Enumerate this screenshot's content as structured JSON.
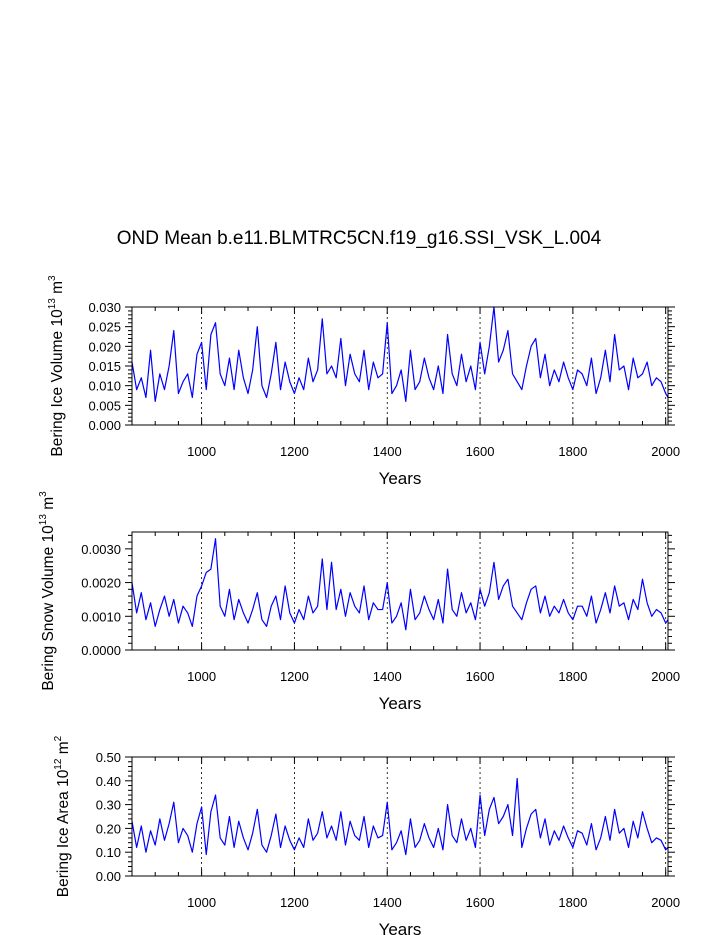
{
  "figure": {
    "title": "OND Mean b.e11.BLMTRC5CN.f19_g16.SSI_VSK_L.004"
  },
  "chart_data": [
    {
      "type": "line",
      "ylabel": {
        "main": "Bering Ice Volume 10",
        "sup": "13",
        "unit": " m",
        "unit_sup": "3"
      },
      "xlabel": "Years",
      "xlim": [
        850,
        2005
      ],
      "ylim": [
        0,
        0.03
      ],
      "xticks": [
        "1000",
        "1200",
        "1400",
        "1600",
        "1800",
        "2000"
      ],
      "yticks": [
        "0.000",
        "0.005",
        "0.010",
        "0.015",
        "0.020",
        "0.025",
        "0.030"
      ],
      "grid_x": true,
      "series": [
        {
          "color": "#0000ff",
          "x": [
            850,
            860,
            870,
            880,
            890,
            900,
            910,
            920,
            930,
            940,
            950,
            960,
            970,
            980,
            990,
            1000,
            1010,
            1020,
            1030,
            1040,
            1050,
            1060,
            1070,
            1080,
            1090,
            1100,
            1110,
            1120,
            1130,
            1140,
            1150,
            1160,
            1170,
            1180,
            1190,
            1200,
            1210,
            1220,
            1230,
            1240,
            1250,
            1260,
            1270,
            1280,
            1290,
            1300,
            1310,
            1320,
            1330,
            1340,
            1350,
            1360,
            1370,
            1380,
            1390,
            1400,
            1410,
            1420,
            1430,
            1440,
            1450,
            1460,
            1470,
            1480,
            1490,
            1500,
            1510,
            1520,
            1530,
            1540,
            1550,
            1560,
            1570,
            1580,
            1590,
            1600,
            1610,
            1620,
            1630,
            1640,
            1650,
            1660,
            1670,
            1680,
            1690,
            1700,
            1710,
            1720,
            1730,
            1740,
            1750,
            1760,
            1770,
            1780,
            1790,
            1800,
            1810,
            1820,
            1830,
            1840,
            1850,
            1860,
            1870,
            1880,
            1890,
            1900,
            1910,
            1920,
            1930,
            1940,
            1950,
            1960,
            1970,
            1980,
            1990,
            2000,
            2005
          ],
          "y": [
            0.016,
            0.009,
            0.012,
            0.007,
            0.019,
            0.006,
            0.013,
            0.009,
            0.015,
            0.024,
            0.008,
            0.011,
            0.013,
            0.007,
            0.018,
            0.021,
            0.009,
            0.023,
            0.026,
            0.013,
            0.01,
            0.017,
            0.009,
            0.019,
            0.012,
            0.008,
            0.014,
            0.025,
            0.01,
            0.007,
            0.013,
            0.021,
            0.009,
            0.016,
            0.011,
            0.008,
            0.012,
            0.009,
            0.017,
            0.011,
            0.014,
            0.027,
            0.013,
            0.015,
            0.012,
            0.022,
            0.01,
            0.018,
            0.013,
            0.011,
            0.019,
            0.009,
            0.016,
            0.012,
            0.013,
            0.026,
            0.008,
            0.01,
            0.014,
            0.006,
            0.019,
            0.009,
            0.011,
            0.017,
            0.012,
            0.009,
            0.015,
            0.008,
            0.023,
            0.013,
            0.01,
            0.018,
            0.011,
            0.015,
            0.009,
            0.021,
            0.013,
            0.02,
            0.03,
            0.016,
            0.019,
            0.024,
            0.013,
            0.011,
            0.009,
            0.015,
            0.02,
            0.022,
            0.012,
            0.018,
            0.01,
            0.014,
            0.011,
            0.016,
            0.012,
            0.009,
            0.014,
            0.013,
            0.01,
            0.017,
            0.008,
            0.012,
            0.019,
            0.011,
            0.023,
            0.014,
            0.015,
            0.009,
            0.017,
            0.012,
            0.013,
            0.016,
            0.01,
            0.012,
            0.011,
            0.008,
            0.007
          ]
        }
      ]
    },
    {
      "type": "line",
      "ylabel": {
        "main": "Bering Snow Volume 10",
        "sup": "13",
        "unit": " m",
        "unit_sup": "3"
      },
      "xlabel": "Years",
      "xlim": [
        850,
        2005
      ],
      "ylim": [
        0,
        0.0035
      ],
      "xticks": [
        "1000",
        "1200",
        "1400",
        "1600",
        "1800",
        "2000"
      ],
      "yticks": [
        "0.0000",
        "0.0010",
        "0.0020",
        "0.0030"
      ],
      "grid_x": true,
      "series": [
        {
          "color": "#0000ff",
          "x": [
            850,
            860,
            870,
            880,
            890,
            900,
            910,
            920,
            930,
            940,
            950,
            960,
            970,
            980,
            990,
            1000,
            1010,
            1020,
            1030,
            1040,
            1050,
            1060,
            1070,
            1080,
            1090,
            1100,
            1110,
            1120,
            1130,
            1140,
            1150,
            1160,
            1170,
            1180,
            1190,
            1200,
            1210,
            1220,
            1230,
            1240,
            1250,
            1260,
            1270,
            1280,
            1290,
            1300,
            1310,
            1320,
            1330,
            1340,
            1350,
            1360,
            1370,
            1380,
            1390,
            1400,
            1410,
            1420,
            1430,
            1440,
            1450,
            1460,
            1470,
            1480,
            1490,
            1500,
            1510,
            1520,
            1530,
            1540,
            1550,
            1560,
            1570,
            1580,
            1590,
            1600,
            1610,
            1620,
            1630,
            1640,
            1650,
            1660,
            1670,
            1680,
            1690,
            1700,
            1710,
            1720,
            1730,
            1740,
            1750,
            1760,
            1770,
            1780,
            1790,
            1800,
            1810,
            1820,
            1830,
            1840,
            1850,
            1860,
            1870,
            1880,
            1890,
            1900,
            1910,
            1920,
            1930,
            1940,
            1950,
            1960,
            1970,
            1980,
            1990,
            2000,
            2005
          ],
          "y": [
            0.002,
            0.0011,
            0.0017,
            0.0009,
            0.0014,
            0.0007,
            0.0012,
            0.0016,
            0.001,
            0.0015,
            0.0008,
            0.0013,
            0.0011,
            0.0007,
            0.0016,
            0.0019,
            0.0023,
            0.0024,
            0.0033,
            0.0013,
            0.001,
            0.0018,
            0.0009,
            0.0015,
            0.0011,
            0.0008,
            0.0012,
            0.0017,
            0.0009,
            0.0007,
            0.0013,
            0.0016,
            0.0009,
            0.0019,
            0.0011,
            0.0008,
            0.0012,
            0.0009,
            0.0016,
            0.0011,
            0.0013,
            0.0027,
            0.0012,
            0.0026,
            0.0012,
            0.0018,
            0.001,
            0.0017,
            0.0013,
            0.0011,
            0.0019,
            0.0009,
            0.0014,
            0.0012,
            0.0012,
            0.002,
            0.0008,
            0.001,
            0.0014,
            0.0006,
            0.0018,
            0.0009,
            0.0011,
            0.0016,
            0.0012,
            0.0009,
            0.0015,
            0.0008,
            0.0024,
            0.0012,
            0.001,
            0.0017,
            0.0011,
            0.0014,
            0.0009,
            0.0018,
            0.0013,
            0.0017,
            0.0026,
            0.0015,
            0.0019,
            0.0021,
            0.0013,
            0.0011,
            0.0009,
            0.0014,
            0.0018,
            0.0019,
            0.0011,
            0.0016,
            0.001,
            0.0013,
            0.0011,
            0.0015,
            0.0011,
            0.0009,
            0.0013,
            0.0013,
            0.001,
            0.0016,
            0.0008,
            0.0012,
            0.0017,
            0.0011,
            0.0019,
            0.0013,
            0.0014,
            0.0009,
            0.0015,
            0.0012,
            0.0021,
            0.0014,
            0.001,
            0.0012,
            0.0011,
            0.0008,
            0.0009
          ]
        }
      ]
    },
    {
      "type": "line",
      "ylabel": {
        "main": "Bering Ice Area 10",
        "sup": "12",
        "unit": " m",
        "unit_sup": "2"
      },
      "xlabel": "Years",
      "xlim": [
        850,
        2005
      ],
      "ylim": [
        0,
        0.5
      ],
      "xticks": [
        "1000",
        "1200",
        "1400",
        "1600",
        "1800",
        "2000"
      ],
      "yticks": [
        "0.00",
        "0.10",
        "0.20",
        "0.30",
        "0.40",
        "0.50"
      ],
      "grid_x": true,
      "series": [
        {
          "color": "#0000ff",
          "x": [
            850,
            860,
            870,
            880,
            890,
            900,
            910,
            920,
            930,
            940,
            950,
            960,
            970,
            980,
            990,
            1000,
            1010,
            1020,
            1030,
            1040,
            1050,
            1060,
            1070,
            1080,
            1090,
            1100,
            1110,
            1120,
            1130,
            1140,
            1150,
            1160,
            1170,
            1180,
            1190,
            1200,
            1210,
            1220,
            1230,
            1240,
            1250,
            1260,
            1270,
            1280,
            1290,
            1300,
            1310,
            1320,
            1330,
            1340,
            1350,
            1360,
            1370,
            1380,
            1390,
            1400,
            1410,
            1420,
            1430,
            1440,
            1450,
            1460,
            1470,
            1480,
            1490,
            1500,
            1510,
            1520,
            1530,
            1540,
            1550,
            1560,
            1570,
            1580,
            1590,
            1600,
            1610,
            1620,
            1630,
            1640,
            1650,
            1660,
            1670,
            1680,
            1690,
            1700,
            1710,
            1720,
            1730,
            1740,
            1750,
            1760,
            1770,
            1780,
            1790,
            1800,
            1810,
            1820,
            1830,
            1840,
            1850,
            1860,
            1870,
            1880,
            1890,
            1900,
            1910,
            1920,
            1930,
            1940,
            1950,
            1960,
            1970,
            1980,
            1990,
            2000,
            2005
          ],
          "y": [
            0.23,
            0.12,
            0.21,
            0.1,
            0.19,
            0.13,
            0.24,
            0.15,
            0.22,
            0.31,
            0.14,
            0.2,
            0.17,
            0.1,
            0.22,
            0.29,
            0.09,
            0.27,
            0.34,
            0.16,
            0.13,
            0.25,
            0.12,
            0.23,
            0.16,
            0.11,
            0.18,
            0.28,
            0.13,
            0.1,
            0.17,
            0.26,
            0.12,
            0.21,
            0.15,
            0.11,
            0.16,
            0.12,
            0.24,
            0.15,
            0.18,
            0.27,
            0.16,
            0.21,
            0.15,
            0.27,
            0.13,
            0.23,
            0.17,
            0.15,
            0.25,
            0.12,
            0.21,
            0.16,
            0.17,
            0.31,
            0.11,
            0.14,
            0.19,
            0.09,
            0.24,
            0.12,
            0.15,
            0.22,
            0.16,
            0.12,
            0.2,
            0.11,
            0.3,
            0.17,
            0.14,
            0.24,
            0.15,
            0.2,
            0.12,
            0.34,
            0.17,
            0.28,
            0.33,
            0.22,
            0.25,
            0.3,
            0.17,
            0.41,
            0.12,
            0.2,
            0.26,
            0.28,
            0.16,
            0.24,
            0.13,
            0.19,
            0.15,
            0.21,
            0.16,
            0.12,
            0.19,
            0.18,
            0.13,
            0.22,
            0.11,
            0.16,
            0.25,
            0.15,
            0.28,
            0.18,
            0.2,
            0.12,
            0.23,
            0.16,
            0.27,
            0.2,
            0.14,
            0.16,
            0.15,
            0.11,
            0.12
          ]
        }
      ]
    }
  ]
}
